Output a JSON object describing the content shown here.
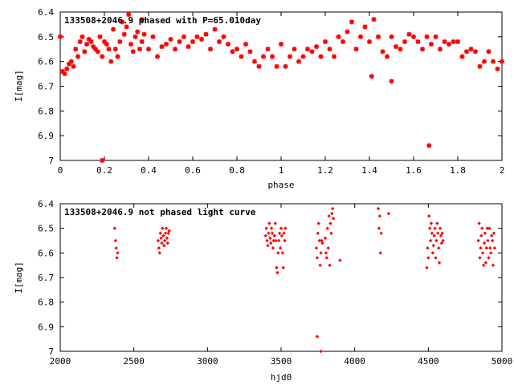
{
  "chart_data": [
    {
      "type": "scatter",
      "title": "133508+2046.9 phased with P=65.010day",
      "xlabel": "phase",
      "ylabel": "I[mag]",
      "xlim": [
        0,
        2
      ],
      "ylim": [
        6.4,
        7.0
      ],
      "y_inverted": true,
      "xticks": [
        "0",
        "0.2",
        "0.4",
        "0.6",
        "0.8",
        "1",
        "1.2",
        "1.4",
        "1.6",
        "1.8",
        "2"
      ],
      "yticks": [
        "6.4",
        "6.5",
        "6.6",
        "6.7",
        "6.8",
        "6.9",
        "7"
      ],
      "color": "#ff0000",
      "marker": "star",
      "x": [
        0.0,
        0.01,
        0.02,
        0.03,
        0.04,
        0.05,
        0.06,
        0.07,
        0.08,
        0.09,
        0.1,
        0.11,
        0.12,
        0.13,
        0.14,
        0.15,
        0.16,
        0.17,
        0.18,
        0.19,
        0.2,
        0.21,
        0.22,
        0.23,
        0.24,
        0.25,
        0.26,
        0.27,
        0.28,
        0.29,
        0.3,
        0.31,
        0.32,
        0.33,
        0.34,
        0.35,
        0.36,
        0.37,
        0.38,
        0.4,
        0.42,
        0.44,
        0.46,
        0.48,
        0.5,
        0.52,
        0.54,
        0.56,
        0.58,
        0.6,
        0.62,
        0.64,
        0.66,
        0.68,
        0.7,
        0.72,
        0.74,
        0.76,
        0.78,
        0.8,
        0.82,
        0.84,
        0.86,
        0.88,
        0.9,
        0.92,
        0.94,
        0.96,
        0.98,
        1.0,
        1.02,
        1.04,
        1.06,
        1.08,
        1.1,
        1.12,
        1.14,
        1.16,
        1.18,
        1.2,
        1.22,
        1.24,
        1.26,
        1.28,
        1.3,
        1.32,
        1.34,
        1.36,
        1.38,
        1.4,
        1.42,
        1.44,
        1.46,
        1.48,
        1.5,
        1.52,
        1.54,
        1.56,
        1.58,
        1.6,
        1.62,
        1.64,
        1.66,
        1.68,
        1.7,
        1.72,
        1.74,
        1.76,
        1.78,
        1.8,
        1.82,
        1.84,
        1.86,
        1.88,
        1.9,
        1.92,
        1.94,
        1.96,
        1.98,
        2.0,
        0.19,
        1.67,
        0.37,
        1.41,
        1.5
      ],
      "y": [
        6.5,
        6.64,
        6.65,
        6.63,
        6.61,
        6.6,
        6.62,
        6.55,
        6.58,
        6.52,
        6.5,
        6.56,
        6.53,
        6.51,
        6.52,
        6.54,
        6.55,
        6.56,
        6.5,
        6.58,
        6.52,
        6.53,
        6.55,
        6.6,
        6.47,
        6.55,
        6.58,
        6.52,
        6.44,
        6.49,
        6.46,
        6.41,
        6.53,
        6.56,
        6.5,
        6.48,
        6.55,
        6.52,
        6.49,
        6.55,
        6.5,
        6.58,
        6.54,
        6.53,
        6.51,
        6.55,
        6.52,
        6.5,
        6.54,
        6.52,
        6.5,
        6.51,
        6.49,
        6.55,
        6.47,
        6.52,
        6.5,
        6.53,
        6.56,
        6.55,
        6.58,
        6.53,
        6.56,
        6.6,
        6.62,
        6.58,
        6.55,
        6.58,
        6.62,
        6.53,
        6.62,
        6.58,
        6.55,
        6.6,
        6.58,
        6.55,
        6.56,
        6.54,
        6.58,
        6.52,
        6.55,
        6.58,
        6.5,
        6.52,
        6.48,
        6.44,
        6.55,
        6.5,
        6.46,
        6.52,
        6.43,
        6.5,
        6.56,
        6.58,
        6.5,
        6.54,
        6.55,
        6.52,
        6.49,
        6.5,
        6.52,
        6.55,
        6.5,
        6.53,
        6.5,
        6.55,
        6.52,
        6.53,
        6.52,
        6.52,
        6.58,
        6.56,
        6.55,
        6.56,
        6.62,
        6.6,
        6.56,
        6.6,
        6.63,
        6.6,
        7.0,
        6.94,
        6.43,
        6.66,
        6.68
      ]
    },
    {
      "type": "scatter",
      "title": "133508+2046.9 not phased light curve",
      "xlabel": "hjd0",
      "ylabel": "I[mag]",
      "xlim": [
        2000,
        5000
      ],
      "ylim": [
        6.4,
        7.0
      ],
      "y_inverted": true,
      "xticks": [
        "2000",
        "2500",
        "3000",
        "3500",
        "4000",
        "4500",
        "5000"
      ],
      "yticks": [
        "6.4",
        "6.5",
        "6.6",
        "6.7",
        "6.8",
        "6.9",
        "7"
      ],
      "color": "#ff0000",
      "marker": "diamond",
      "x": [
        2370,
        2375,
        2380,
        2385,
        2390,
        2665,
        2670,
        2675,
        2680,
        2685,
        2690,
        2695,
        2700,
        2705,
        2710,
        2715,
        2720,
        2725,
        2730,
        2735,
        2740,
        3395,
        3400,
        3405,
        3410,
        3415,
        3420,
        3425,
        3430,
        3435,
        3440,
        3445,
        3450,
        3455,
        3460,
        3465,
        3470,
        3475,
        3480,
        3485,
        3490,
        3495,
        3500,
        3505,
        3510,
        3515,
        3520,
        3525,
        3530,
        3740,
        3745,
        3750,
        3755,
        3760,
        3765,
        3770,
        3775,
        3780,
        3800,
        3805,
        3810,
        3815,
        3820,
        3825,
        3830,
        3835,
        3840,
        3845,
        3850,
        3855,
        3900,
        4160,
        4165,
        4170,
        4175,
        4180,
        4230,
        4490,
        4495,
        4500,
        4505,
        4510,
        4515,
        4520,
        4525,
        4530,
        4535,
        4540,
        4545,
        4550,
        4555,
        4560,
        4565,
        4570,
        4575,
        4580,
        4585,
        4590,
        4595,
        4600,
        4840,
        4845,
        4850,
        4855,
        4860,
        4865,
        4870,
        4875,
        4880,
        4885,
        4890,
        4895,
        4900,
        4905,
        4910,
        4915,
        4920,
        4925,
        4930,
        4935,
        4940,
        4945,
        4950,
        3745,
        3770
      ],
      "y": [
        6.5,
        6.55,
        6.58,
        6.62,
        6.6,
        6.55,
        6.58,
        6.6,
        6.52,
        6.54,
        6.56,
        6.5,
        6.53,
        6.57,
        6.55,
        6.52,
        6.5,
        6.54,
        6.56,
        6.52,
        6.51,
        6.53,
        6.5,
        6.55,
        6.57,
        6.52,
        6.48,
        6.54,
        6.56,
        6.5,
        6.52,
        6.58,
        6.55,
        6.53,
        6.48,
        6.55,
        6.66,
        6.68,
        6.6,
        6.55,
        6.52,
        6.58,
        6.5,
        6.53,
        6.6,
        6.66,
        6.52,
        6.55,
        6.5,
        6.58,
        6.62,
        6.52,
        6.48,
        6.55,
        6.65,
        6.6,
        6.55,
        6.56,
        6.54,
        6.6,
        6.62,
        6.5,
        6.58,
        6.45,
        6.65,
        6.48,
        6.52,
        6.44,
        6.42,
        6.46,
        6.63,
        6.42,
        6.5,
        6.45,
        6.6,
        6.52,
        6.44,
        6.66,
        6.58,
        6.62,
        6.45,
        6.5,
        6.55,
        6.48,
        6.52,
        6.6,
        6.57,
        6.53,
        6.5,
        6.62,
        6.55,
        6.48,
        6.52,
        6.58,
        6.64,
        6.5,
        6.53,
        6.56,
        6.52,
        6.55,
        6.55,
        6.48,
        6.62,
        6.58,
        6.53,
        6.5,
        6.6,
        6.65,
        6.56,
        6.52,
        6.64,
        6.58,
        6.5,
        6.55,
        6.62,
        6.5,
        6.58,
        6.6,
        6.53,
        6.55,
        6.65,
        6.52,
        6.58,
        6.94,
        7.0
      ]
    }
  ]
}
